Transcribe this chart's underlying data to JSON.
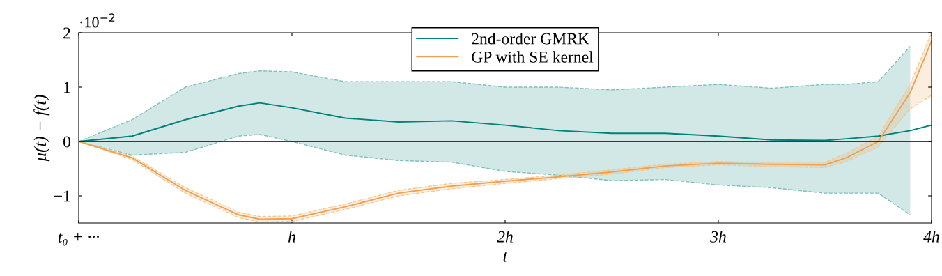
{
  "chart_data": {
    "type": "line",
    "xlabel": "t",
    "ylabel": "μ(t) − f(t)",
    "annotations": [
      "·10$^{−2}$"
    ],
    "x": [
      0,
      0.25,
      0.5,
      0.75,
      0.85,
      1.0,
      1.25,
      1.5,
      1.75,
      2.0,
      2.25,
      2.5,
      2.75,
      3.0,
      3.25,
      3.5,
      3.6,
      3.75,
      3.9,
      4.0
    ],
    "series": [
      {
        "color": "#7fbfbd",
        "line_style": "dashed",
        "values": [
          0,
          0.4,
          1.0,
          1.25,
          1.3,
          1.28,
          1.1,
          1.1,
          1.1,
          1.0,
          1.0,
          0.95,
          1.0,
          1.05,
          0.98,
          1.05,
          1.05,
          1.1,
          1.75,
          null
        ]
      },
      {
        "color": "#7fbfbd",
        "line_style": "dashed",
        "values": [
          0,
          -0.25,
          -0.2,
          0.1,
          0.13,
          0.0,
          -0.25,
          -0.35,
          -0.38,
          -0.55,
          -0.62,
          -0.72,
          -0.7,
          -0.8,
          -0.85,
          -0.95,
          -0.95,
          -0.95,
          -1.35,
          null
        ]
      },
      {
        "color": "#f6c890",
        "line_style": "dashed",
        "values": [
          0,
          -0.27,
          -0.85,
          -1.3,
          -1.38,
          -1.37,
          -1.15,
          -0.9,
          -0.77,
          -0.7,
          -0.62,
          -0.52,
          -0.42,
          -0.37,
          -0.38,
          -0.38,
          -0.22,
          0.1,
          1.05,
          2.0
        ]
      },
      {
        "color": "#f6c890",
        "line_style": "dashed",
        "values": [
          0,
          -0.33,
          -0.95,
          -1.4,
          -1.48,
          -1.47,
          -1.25,
          -1.0,
          -0.87,
          -0.77,
          -0.68,
          -0.6,
          -0.48,
          -0.43,
          -0.46,
          -0.48,
          -0.37,
          -0.1,
          0.6,
          0.85
        ]
      },
      {
        "name": "2nd-order GMRK",
        "color": "#00807a",
        "values": [
          0,
          0.1,
          0.4,
          0.65,
          0.71,
          0.62,
          0.43,
          0.36,
          0.38,
          0.3,
          0.2,
          0.15,
          0.15,
          0.1,
          0.03,
          0.02,
          0.05,
          0.1,
          0.2,
          0.3
        ],
        "upper": [
          0,
          0.4,
          1.0,
          1.25,
          1.3,
          1.28,
          1.1,
          1.1,
          1.1,
          1.0,
          1.0,
          0.95,
          1.0,
          1.05,
          0.98,
          1.05,
          1.05,
          1.1,
          1.75,
          null
        ],
        "lower": [
          0,
          -0.25,
          -0.2,
          0.1,
          0.13,
          0.0,
          -0.25,
          -0.35,
          -0.38,
          -0.55,
          -0.62,
          -0.72,
          -0.7,
          -0.8,
          -0.85,
          -0.95,
          -0.95,
          -0.95,
          -1.35,
          null
        ]
      },
      {
        "name": "GP with SE kernel",
        "color": "#f0a050",
        "values": [
          0,
          -0.3,
          -0.9,
          -1.35,
          -1.43,
          -1.42,
          -1.2,
          -0.95,
          -0.82,
          -0.73,
          -0.65,
          -0.56,
          -0.45,
          -0.4,
          -0.42,
          -0.43,
          -0.3,
          0.0,
          0.9,
          1.85
        ],
        "upper": [
          0,
          -0.27,
          -0.85,
          -1.3,
          -1.38,
          -1.37,
          -1.15,
          -0.9,
          -0.77,
          -0.7,
          -0.62,
          -0.52,
          -0.42,
          -0.37,
          -0.38,
          -0.38,
          -0.22,
          0.1,
          1.05,
          2.0
        ],
        "lower": [
          0,
          -0.33,
          -0.95,
          -1.4,
          -1.48,
          -1.47,
          -1.25,
          -1.0,
          -0.87,
          -0.77,
          -0.68,
          -0.6,
          -0.48,
          -0.43,
          -0.46,
          -0.48,
          -0.37,
          -0.1,
          0.6,
          0.85
        ]
      }
    ],
    "xlim": [
      0,
      4
    ],
    "ylim": [
      -1.5,
      2
    ],
    "xticks": [
      {
        "value": 0,
        "label": "t₀ + ···"
      },
      {
        "value": 1,
        "label": "h"
      },
      {
        "value": 2,
        "label": "2h"
      },
      {
        "value": 3,
        "label": "3h"
      },
      {
        "value": 4,
        "label": "4h"
      }
    ],
    "yticks": [
      {
        "value": -1,
        "label": "−1"
      },
      0,
      1,
      2
    ],
    "ref_lines": [
      {
        "axis": "y",
        "value": 0,
        "color": "#000000"
      }
    ],
    "legend": "top",
    "grid": false,
    "line_style": "solid",
    "marker": "none"
  }
}
